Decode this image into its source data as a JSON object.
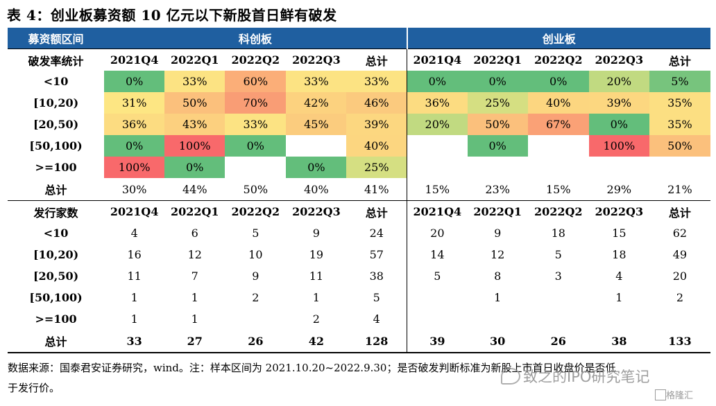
{
  "title": "表 4：创业板募资额 10 亿元以下新股首日鲜有破发",
  "header": {
    "col0": "募资额区间",
    "group1": "科创板",
    "group2": "创业板"
  },
  "break_rate": {
    "label": "破发率统计",
    "columns": [
      "2021Q4",
      "2022Q1",
      "2022Q2",
      "2022Q3",
      "总计",
      "2021Q4",
      "2022Q1",
      "2022Q2",
      "2022Q3",
      "总计"
    ],
    "rows": [
      {
        "label": "<10",
        "cells": [
          {
            "v": "0%",
            "c": "#63be7b"
          },
          {
            "v": "33%",
            "c": "#fce383"
          },
          {
            "v": "60%",
            "c": "#fbae78"
          },
          {
            "v": "33%",
            "c": "#fce383"
          },
          {
            "v": "33%",
            "c": "#fce383"
          },
          {
            "v": "0%",
            "c": "#63be7b"
          },
          {
            "v": "0%",
            "c": "#63be7b"
          },
          {
            "v": "0%",
            "c": "#63be7b"
          },
          {
            "v": "20%",
            "c": "#c1da81"
          },
          {
            "v": "5%",
            "c": "#77c47d"
          }
        ]
      },
      {
        "label": "[10,20)",
        "cells": [
          {
            "v": "31%",
            "c": "#fde683"
          },
          {
            "v": "50%",
            "c": "#fbc07c"
          },
          {
            "v": "70%",
            "c": "#f99d75"
          },
          {
            "v": "42%",
            "c": "#fcd27f"
          },
          {
            "v": "46%",
            "c": "#fbca7e"
          },
          {
            "v": "36%",
            "c": "#fcdc81"
          },
          {
            "v": "25%",
            "c": "#d5df82"
          },
          {
            "v": "40%",
            "c": "#fcd680"
          },
          {
            "v": "39%",
            "c": "#fcd780"
          },
          {
            "v": "35%",
            "c": "#fcdf82"
          }
        ]
      },
      {
        "label": "[20,50)",
        "cells": [
          {
            "v": "36%",
            "c": "#fcdc81"
          },
          {
            "v": "43%",
            "c": "#fcd07f"
          },
          {
            "v": "33%",
            "c": "#fce383"
          },
          {
            "v": "45%",
            "c": "#fbcc7e"
          },
          {
            "v": "39%",
            "c": "#fcd780"
          },
          {
            "v": "20%",
            "c": "#c1da81"
          },
          {
            "v": "50%",
            "c": "#fbc07c"
          },
          {
            "v": "67%",
            "c": "#faa176"
          },
          {
            "v": "0%",
            "c": "#63be7b"
          },
          {
            "v": "35%",
            "c": "#fcdf82"
          }
        ]
      },
      {
        "label": "[50,100)",
        "cells": [
          {
            "v": "0%",
            "c": "#63be7b"
          },
          {
            "v": "100%",
            "c": "#f8696b"
          },
          {
            "v": "0%",
            "c": "#63be7b"
          },
          {
            "v": "",
            "c": ""
          },
          {
            "v": "40%",
            "c": "#fcd680"
          },
          {
            "v": "",
            "c": ""
          },
          {
            "v": "0%",
            "c": "#63be7b"
          },
          {
            "v": "",
            "c": ""
          },
          {
            "v": "100%",
            "c": "#f8696b"
          },
          {
            "v": "50%",
            "c": "#fbc07c"
          }
        ]
      },
      {
        "label": ">=100",
        "cells": [
          {
            "v": "100%",
            "c": "#f8696b"
          },
          {
            "v": "0%",
            "c": "#63be7b"
          },
          {
            "v": "",
            "c": ""
          },
          {
            "v": "0%",
            "c": "#63be7b"
          },
          {
            "v": "25%",
            "c": "#d5df82"
          },
          {
            "v": "",
            "c": ""
          },
          {
            "v": "",
            "c": ""
          },
          {
            "v": "",
            "c": ""
          },
          {
            "v": "",
            "c": ""
          },
          {
            "v": "",
            "c": ""
          }
        ]
      }
    ],
    "total": {
      "label": "总计",
      "cells": [
        "30%",
        "44%",
        "50%",
        "40%",
        "41%",
        "15%",
        "23%",
        "15%",
        "29%",
        "21%"
      ]
    }
  },
  "issuers": {
    "label": "发行家数",
    "columns": [
      "2021Q4",
      "2022Q1",
      "2022Q2",
      "2022Q3",
      "总计",
      "2021Q4",
      "2022Q1",
      "2022Q2",
      "2022Q3",
      "总计"
    ],
    "rows": [
      {
        "label": "<10",
        "cells": [
          "4",
          "6",
          "5",
          "9",
          "24",
          "20",
          "9",
          "18",
          "15",
          "62"
        ]
      },
      {
        "label": "[10,20)",
        "cells": [
          "16",
          "12",
          "10",
          "19",
          "57",
          "14",
          "12",
          "5",
          "18",
          "49"
        ]
      },
      {
        "label": "[20,50)",
        "cells": [
          "11",
          "7",
          "9",
          "11",
          "38",
          "5",
          "8",
          "3",
          "4",
          "20"
        ]
      },
      {
        "label": "[50,100)",
        "cells": [
          "1",
          "1",
          "2",
          "1",
          "5",
          "",
          "1",
          "",
          "1",
          "2"
        ]
      },
      {
        "label": ">=100",
        "cells": [
          "1",
          "1",
          "",
          "2",
          "4",
          "",
          "",
          "",
          "",
          ""
        ]
      }
    ],
    "total": {
      "label": "总计",
      "cells": [
        "33",
        "27",
        "26",
        "42",
        "128",
        "39",
        "30",
        "26",
        "38",
        "133"
      ]
    }
  },
  "note_line1": "数据来源：国泰君安证券研究，wind。注：样本区间为 2021.10.20~2022.9.30；是否破发判断标准为新股上市首日收盘价是否低",
  "note_line2": "于发行价。",
  "watermark": "致之的IPO研究笔记",
  "logo": "格隆汇"
}
